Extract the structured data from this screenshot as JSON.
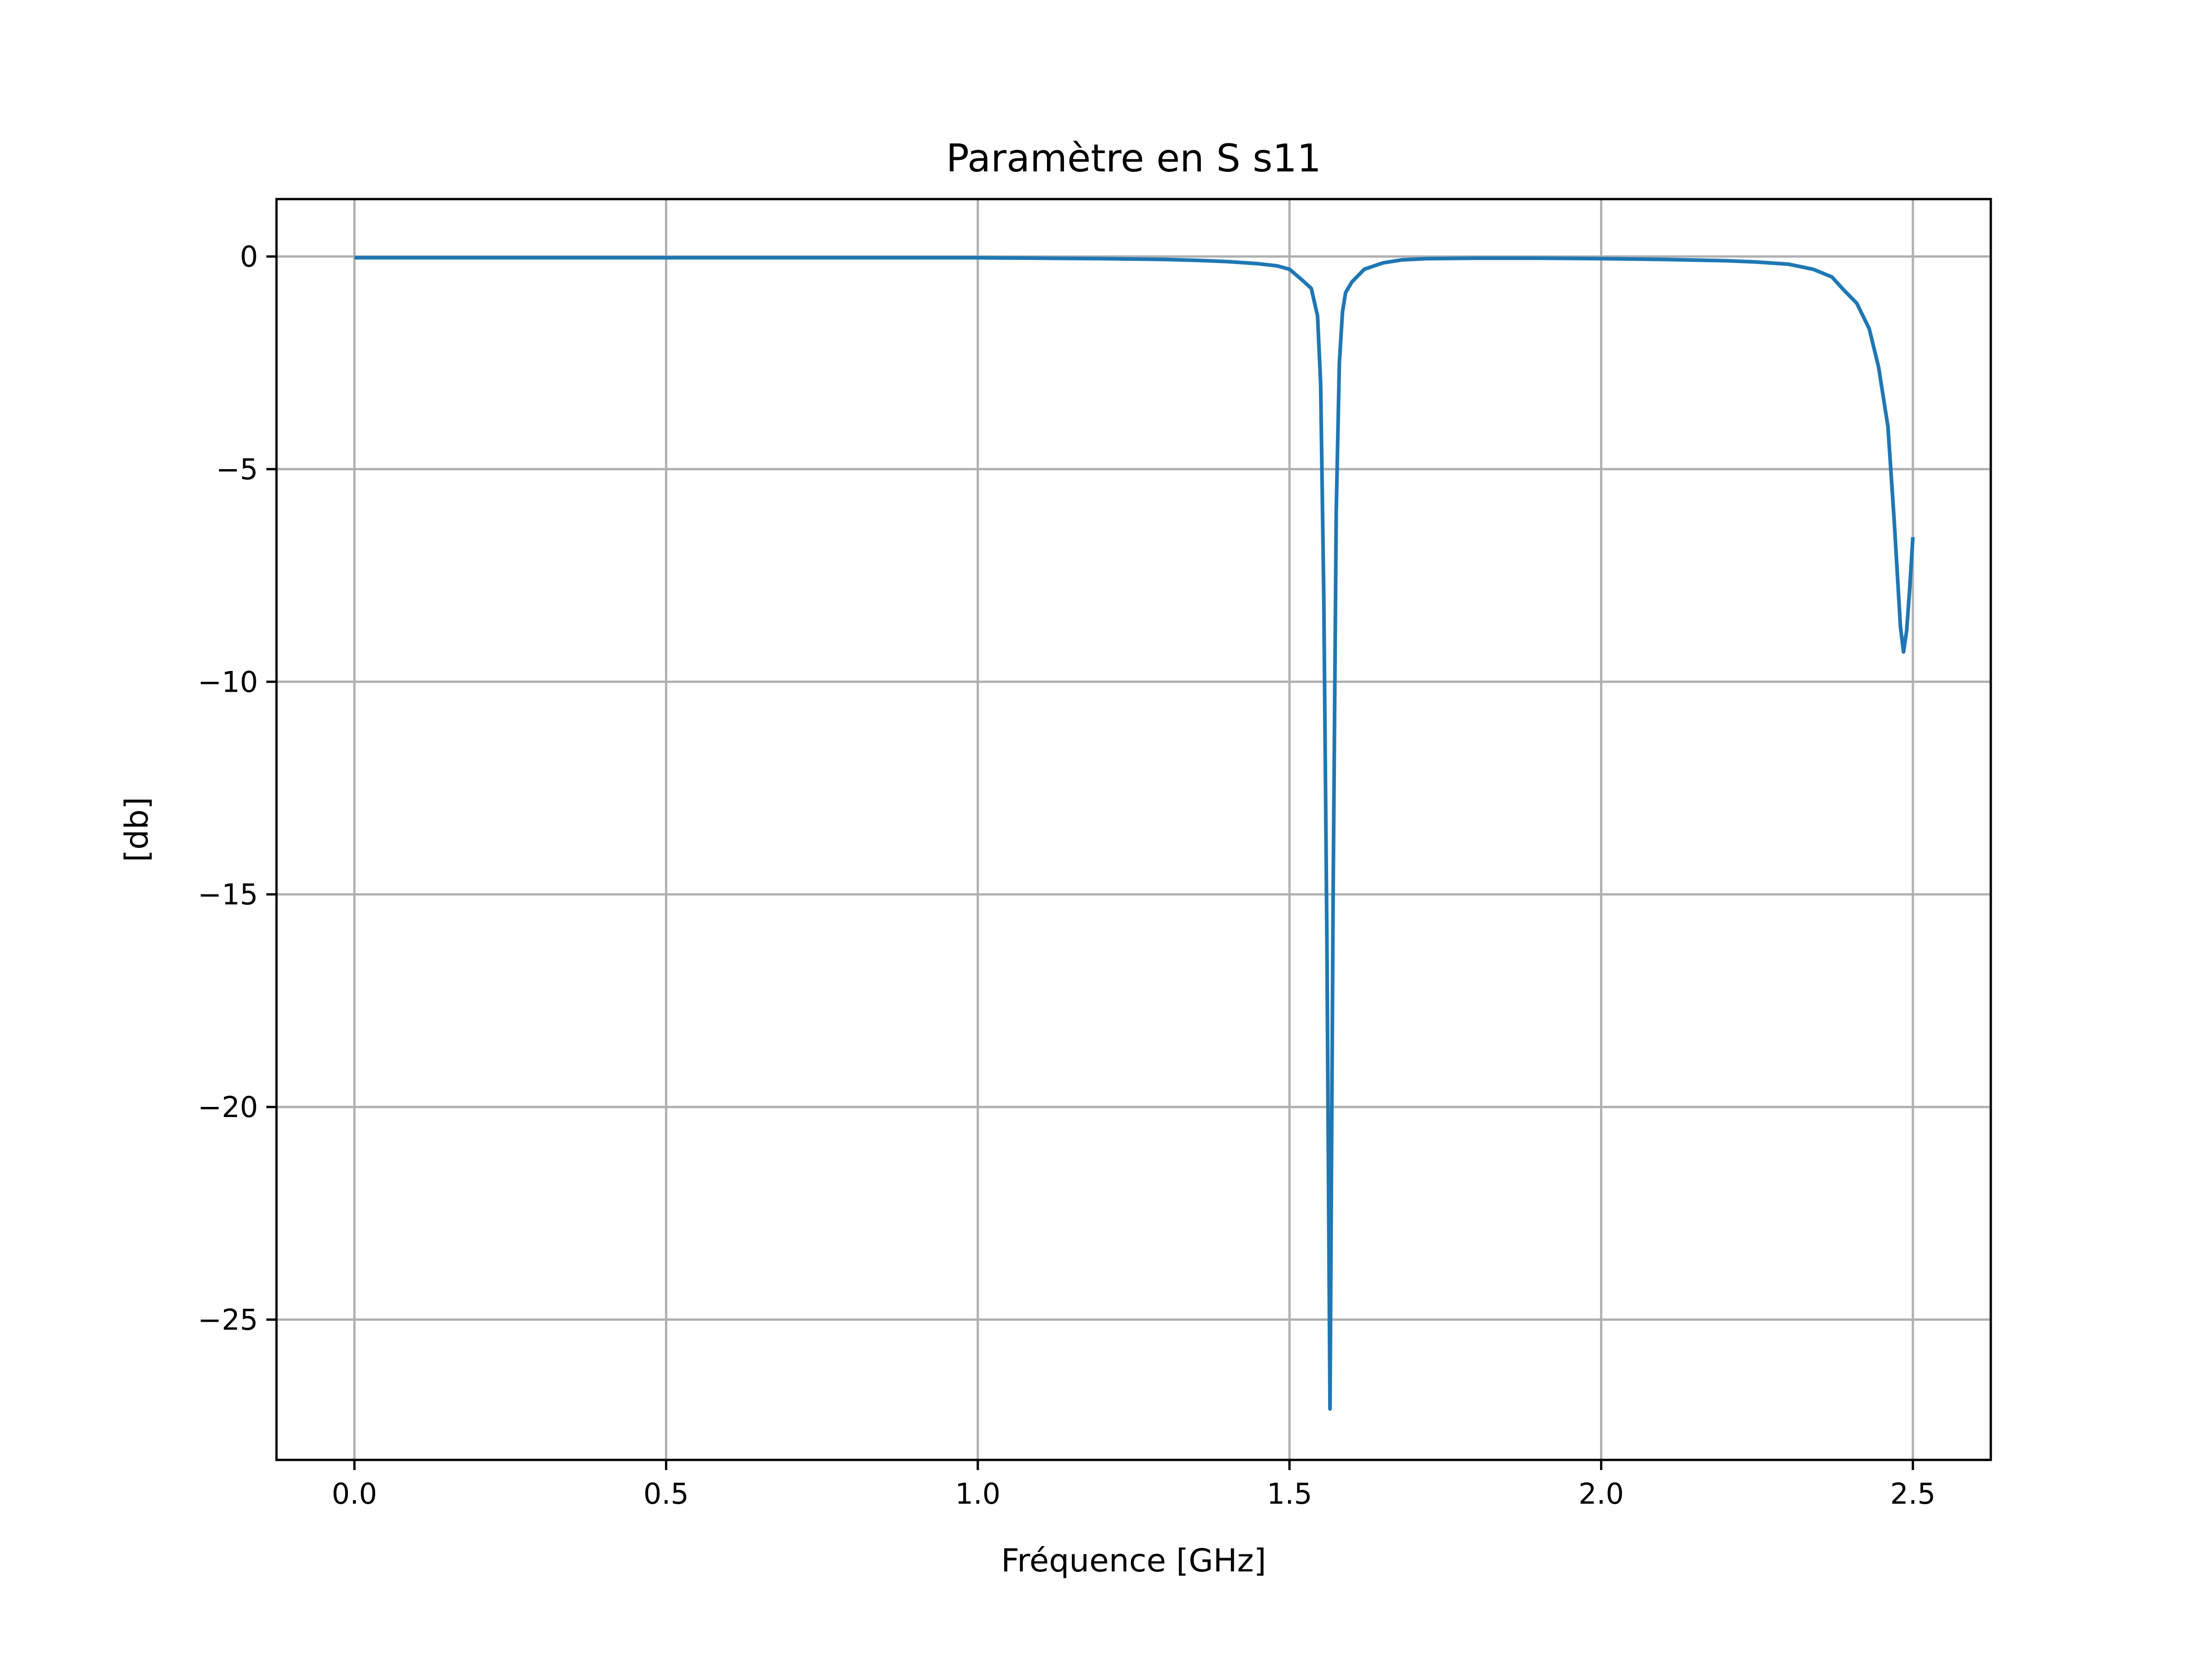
{
  "chart_data": {
    "type": "line",
    "title": "Paramètre en S s11",
    "xlabel": "Fréquence [GHz]",
    "ylabel": "[db]",
    "xlim": [
      -0.125,
      2.625
    ],
    "ylim": [
      -28.3,
      1.35
    ],
    "xticks": [
      0.0,
      0.5,
      1.0,
      1.5,
      2.0,
      2.5
    ],
    "xtick_labels": [
      "0.0",
      "0.5",
      "1.0",
      "1.5",
      "2.0",
      "2.5"
    ],
    "yticks": [
      0,
      -5,
      -10,
      -15,
      -20,
      -25
    ],
    "ytick_labels": [
      "0",
      "−5",
      "−10",
      "−15",
      "−20",
      "−25"
    ],
    "grid": true,
    "legend": "none",
    "series": [
      {
        "color": "#1f77b4",
        "x": [
          0.0,
          0.2,
          0.4,
          0.6,
          0.8,
          1.0,
          1.1,
          1.2,
          1.3,
          1.35,
          1.4,
          1.45,
          1.48,
          1.5,
          1.52,
          1.535,
          1.545,
          1.55,
          1.555,
          1.56,
          1.565,
          1.57,
          1.575,
          1.58,
          1.585,
          1.59,
          1.6,
          1.62,
          1.65,
          1.68,
          1.72,
          1.8,
          1.9,
          2.0,
          2.1,
          2.2,
          2.25,
          2.3,
          2.34,
          2.37,
          2.39,
          2.41,
          2.43,
          2.445,
          2.46,
          2.47,
          2.48,
          2.485,
          2.49,
          2.495,
          2.5
        ],
        "y": [
          -0.03,
          -0.03,
          -0.03,
          -0.03,
          -0.03,
          -0.03,
          -0.04,
          -0.05,
          -0.07,
          -0.09,
          -0.12,
          -0.17,
          -0.22,
          -0.3,
          -0.55,
          -0.75,
          -1.4,
          -3.0,
          -8.0,
          -16.0,
          -27.1,
          -15.0,
          -6.0,
          -2.5,
          -1.3,
          -0.85,
          -0.6,
          -0.3,
          -0.15,
          -0.08,
          -0.05,
          -0.04,
          -0.04,
          -0.05,
          -0.07,
          -0.1,
          -0.13,
          -0.18,
          -0.3,
          -0.48,
          -0.8,
          -1.1,
          -1.7,
          -2.6,
          -4.0,
          -6.2,
          -8.7,
          -9.3,
          -8.8,
          -7.8,
          -6.6
        ]
      }
    ]
  }
}
